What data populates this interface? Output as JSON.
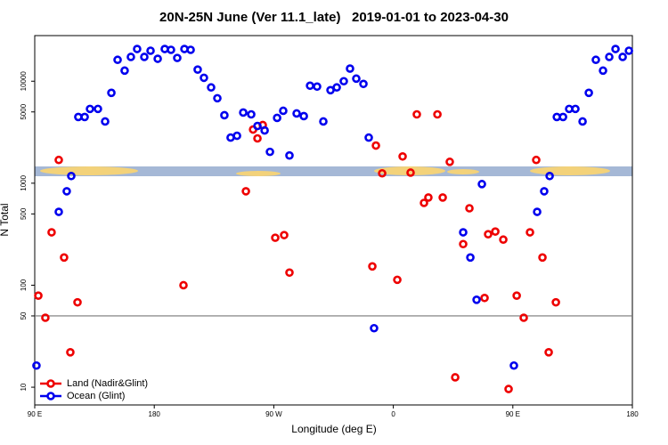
{
  "chart_data": {
    "type": "scatter",
    "title": "20N-25N June (Ver 11.1_late)   2019-01-01 to 2023-04-30",
    "x_label": "Longitude (deg E)",
    "y_label": "N Total",
    "xlim": [
      90,
      540
    ],
    "xticks": [
      {
        "value": 90,
        "label": "90 E"
      },
      {
        "value": 180,
        "label": "180"
      },
      {
        "value": 270,
        "label": "90 W"
      },
      {
        "value": 360,
        "label": "0"
      },
      {
        "value": 450,
        "label": "90 E"
      },
      {
        "value": 540,
        "label": "180"
      }
    ],
    "ylim": [
      6.7,
      28000
    ],
    "ylog": true,
    "yticks": [
      10,
      50,
      100,
      500,
      1000,
      5000,
      10000
    ],
    "reference_line": 50,
    "legend": "bottom-left",
    "series": [
      {
        "name": "Land (Nadir&Glint)",
        "color": "#ee0000",
        "x": [
          92.7,
          98.0,
          102.7,
          108.1,
          112.1,
          116.8,
          122.2,
          202.0,
          249.0,
          254.4,
          257.7,
          261.7,
          271.1,
          277.8,
          281.8,
          344.2,
          346.9,
          351.6,
          363.0,
          367.0,
          373.0,
          377.7,
          383.1,
          386.4,
          393.2,
          397.2,
          402.5,
          406.6,
          412.6,
          417.3,
          428.7,
          431.4,
          436.8,
          442.8,
          446.8,
          452.9,
          458.2,
          462.9,
          467.6,
          472.3,
          477.0,
          482.4
        ],
        "values": [
          79,
          48,
          330,
          1690,
          187,
          22,
          68,
          100,
          834,
          3360,
          2750,
          3720,
          292,
          310,
          133,
          153,
          2340,
          1250,
          113,
          1830,
          1270,
          4730,
          641,
          724,
          4730,
          724,
          1620,
          12.5,
          253,
          568,
          75,
          316,
          336,
          280,
          9.6,
          79,
          48,
          330,
          1690,
          187,
          22,
          68
        ]
      },
      {
        "name": "Ocean (Glint)",
        "color": "#0000ee",
        "x": [
          91.3,
          108.1,
          114.1,
          117.5,
          122.8,
          127.6,
          131.6,
          137.6,
          143.0,
          147.7,
          152.4,
          157.7,
          162.4,
          167.1,
          172.5,
          177.2,
          182.6,
          187.9,
          192.6,
          197.3,
          202.7,
          207.4,
          212.7,
          217.4,
          222.8,
          227.5,
          232.8,
          237.5,
          242.3,
          247.0,
          253.0,
          257.7,
          263.1,
          267.1,
          272.5,
          277.1,
          281.8,
          287.2,
          292.6,
          297.3,
          302.6,
          307.3,
          312.7,
          317.4,
          322.7,
          327.4,
          332.1,
          337.5,
          341.5,
          345.5,
          412.6,
          418.0,
          422.7,
          426.7,
          450.8,
          468.3,
          473.6,
          477.7,
          483.1,
          487.8,
          492.4,
          497.1,
          502.5,
          507.2,
          512.5,
          517.9,
          522.6,
          527.3,
          532.7,
          537.4
        ],
        "values": [
          16.3,
          524,
          834,
          1176,
          4460,
          4460,
          5350,
          5350,
          4030,
          7690,
          16200,
          12700,
          17300,
          20700,
          17300,
          19900,
          16600,
          20700,
          20300,
          16900,
          20700,
          20300,
          13000,
          10800,
          8690,
          6810,
          4640,
          2800,
          2920,
          4930,
          4730,
          3640,
          3290,
          2030,
          4370,
          5130,
          1870,
          4830,
          4550,
          9040,
          8860,
          4030,
          8170,
          8690,
          10000,
          13300,
          10600,
          9410,
          2800,
          37.9,
          330,
          187,
          72,
          980,
          16.3,
          524,
          834,
          1176,
          4460,
          4460,
          5350,
          5350,
          4030,
          7690,
          16200,
          12700,
          17300,
          20700,
          17300,
          19900
        ]
      }
    ]
  }
}
